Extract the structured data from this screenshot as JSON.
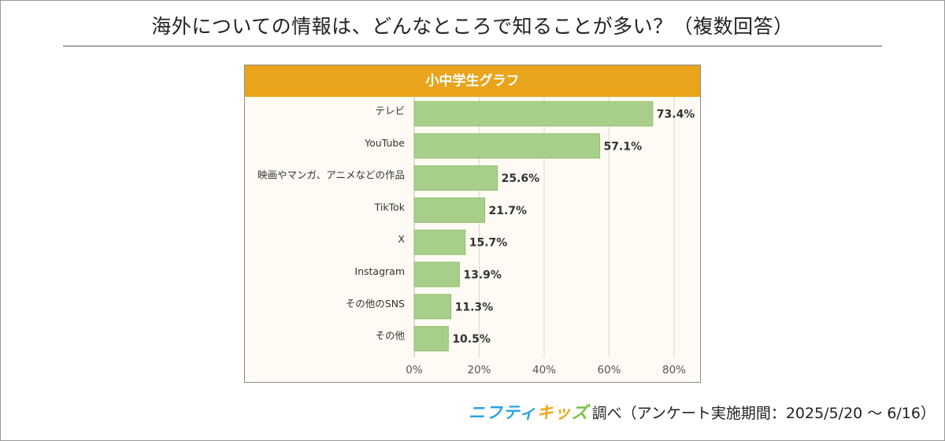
{
  "page": {
    "title": "海外についての情報は、どんなところで知ることが多い？（複数回答）",
    "source_brand_a": "ニフティ",
    "source_brand_b": "キッ",
    "source_brand_c": "ズ",
    "source_text": "調べ（アンケート実施期間：2025/5/20 ～ 6/16）"
  },
  "chart_data": {
    "type": "bar",
    "orientation": "horizontal",
    "title": "小中学生グラフ",
    "categories": [
      "テレビ",
      "YouTube",
      "映画やマンガ、アニメなどの作品",
      "TikTok",
      "X",
      "Instagram",
      "その他のSNS",
      "その他"
    ],
    "values": [
      73.4,
      57.1,
      25.6,
      21.7,
      15.7,
      13.9,
      11.3,
      10.5
    ],
    "value_labels": [
      "73.4%",
      "57.1%",
      "25.6%",
      "21.7%",
      "15.7%",
      "13.9%",
      "11.3%",
      "10.5%"
    ],
    "xlim": [
      0,
      80
    ],
    "xticks": [
      0,
      20,
      40,
      60,
      80
    ],
    "xtick_labels": [
      "0%",
      "20%",
      "40%",
      "60%",
      "80%"
    ],
    "xlabel": "",
    "ylabel": "",
    "grid": true,
    "colors": {
      "bar_fill": "#a8cf8a",
      "bar_stroke": "#8fbd6d",
      "header": "#e8a41c",
      "plot_bg": "#fdfbf3",
      "grid": "#d9d9c8"
    }
  }
}
